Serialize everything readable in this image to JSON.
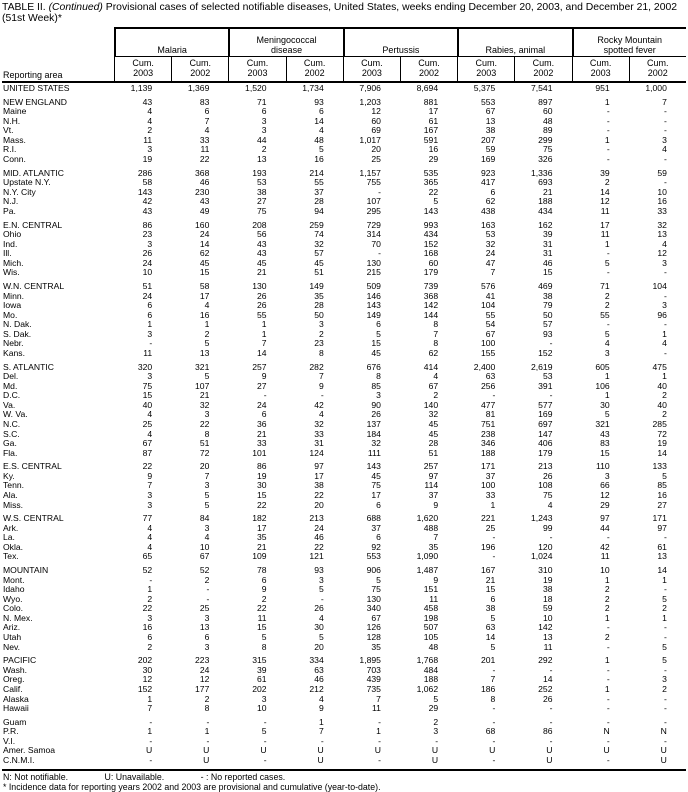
{
  "title": {
    "prefix": "TABLE II. ",
    "continued": "(Continued)",
    "rest": " Provisional cases of selected notifiable diseases, United States, weeks ending December 20, 2003, and December 21, 2002 (51st Week)*"
  },
  "header": {
    "reporting_area": "Reporting area",
    "groups": [
      {
        "lines": [
          "Malaria"
        ]
      },
      {
        "lines": [
          "Meningococcal",
          "disease"
        ]
      },
      {
        "lines": [
          "Pertussis"
        ]
      },
      {
        "lines": [
          "Rabies, animal"
        ]
      },
      {
        "lines": [
          "Rocky Mountain",
          "spotted fever"
        ]
      }
    ],
    "subcolumns": [
      {
        "line1": "Cum.",
        "line2": "2003"
      },
      {
        "line1": "Cum.",
        "line2": "2002"
      }
    ]
  },
  "rows": [
    {
      "area": "UNITED STATES",
      "gap": false,
      "values": [
        "1,139",
        "1,369",
        "1,520",
        "1,734",
        "7,906",
        "8,694",
        "5,375",
        "7,541",
        "951",
        "1,000"
      ]
    },
    {
      "area": "NEW ENGLAND",
      "gap": true,
      "values": [
        "43",
        "83",
        "71",
        "93",
        "1,203",
        "881",
        "553",
        "897",
        "1",
        "7"
      ]
    },
    {
      "area": "Maine",
      "gap": false,
      "values": [
        "4",
        "6",
        "6",
        "6",
        "12",
        "17",
        "67",
        "60",
        "-",
        "-"
      ]
    },
    {
      "area": "N.H.",
      "gap": false,
      "values": [
        "4",
        "7",
        "3",
        "14",
        "60",
        "61",
        "13",
        "48",
        "-",
        "-"
      ]
    },
    {
      "area": "Vt.",
      "gap": false,
      "values": [
        "2",
        "4",
        "3",
        "4",
        "69",
        "167",
        "38",
        "89",
        "-",
        "-"
      ]
    },
    {
      "area": "Mass.",
      "gap": false,
      "values": [
        "11",
        "33",
        "44",
        "48",
        "1,017",
        "591",
        "207",
        "299",
        "1",
        "3"
      ]
    },
    {
      "area": "R.I.",
      "gap": false,
      "values": [
        "3",
        "11",
        "2",
        "5",
        "20",
        "16",
        "59",
        "75",
        "-",
        "4"
      ]
    },
    {
      "area": "Conn.",
      "gap": false,
      "values": [
        "19",
        "22",
        "13",
        "16",
        "25",
        "29",
        "169",
        "326",
        "-",
        "-"
      ]
    },
    {
      "area": "MID. ATLANTIC",
      "gap": true,
      "values": [
        "286",
        "368",
        "193",
        "214",
        "1,157",
        "535",
        "923",
        "1,336",
        "39",
        "59"
      ]
    },
    {
      "area": "Upstate N.Y.",
      "gap": false,
      "values": [
        "58",
        "46",
        "53",
        "55",
        "755",
        "365",
        "417",
        "693",
        "2",
        "-"
      ]
    },
    {
      "area": "N.Y. City",
      "gap": false,
      "values": [
        "143",
        "230",
        "38",
        "37",
        "-",
        "22",
        "6",
        "21",
        "14",
        "10"
      ]
    },
    {
      "area": "N.J.",
      "gap": false,
      "values": [
        "42",
        "43",
        "27",
        "28",
        "107",
        "5",
        "62",
        "188",
        "12",
        "16"
      ]
    },
    {
      "area": "Pa.",
      "gap": false,
      "values": [
        "43",
        "49",
        "75",
        "94",
        "295",
        "143",
        "438",
        "434",
        "11",
        "33"
      ]
    },
    {
      "area": "E.N. CENTRAL",
      "gap": true,
      "values": [
        "86",
        "160",
        "208",
        "259",
        "729",
        "993",
        "163",
        "162",
        "17",
        "32"
      ]
    },
    {
      "area": "Ohio",
      "gap": false,
      "values": [
        "23",
        "24",
        "56",
        "74",
        "314",
        "434",
        "53",
        "39",
        "11",
        "13"
      ]
    },
    {
      "area": "Ind.",
      "gap": false,
      "values": [
        "3",
        "14",
        "43",
        "32",
        "70",
        "152",
        "32",
        "31",
        "1",
        "4"
      ]
    },
    {
      "area": "Ill.",
      "gap": false,
      "values": [
        "26",
        "62",
        "43",
        "57",
        "-",
        "168",
        "24",
        "31",
        "-",
        "12"
      ]
    },
    {
      "area": "Mich.",
      "gap": false,
      "values": [
        "24",
        "45",
        "45",
        "45",
        "130",
        "60",
        "47",
        "46",
        "5",
        "3"
      ]
    },
    {
      "area": "Wis.",
      "gap": false,
      "values": [
        "10",
        "15",
        "21",
        "51",
        "215",
        "179",
        "7",
        "15",
        "-",
        "-"
      ]
    },
    {
      "area": "W.N. CENTRAL",
      "gap": true,
      "values": [
        "51",
        "58",
        "130",
        "149",
        "509",
        "739",
        "576",
        "469",
        "71",
        "104"
      ]
    },
    {
      "area": "Minn.",
      "gap": false,
      "values": [
        "24",
        "17",
        "26",
        "35",
        "146",
        "368",
        "41",
        "38",
        "2",
        "-"
      ]
    },
    {
      "area": "Iowa",
      "gap": false,
      "values": [
        "6",
        "4",
        "26",
        "28",
        "143",
        "142",
        "104",
        "79",
        "2",
        "3"
      ]
    },
    {
      "area": "Mo.",
      "gap": false,
      "values": [
        "6",
        "16",
        "55",
        "50",
        "149",
        "144",
        "55",
        "50",
        "55",
        "96"
      ]
    },
    {
      "area": "N. Dak.",
      "gap": false,
      "values": [
        "1",
        "1",
        "1",
        "3",
        "6",
        "8",
        "54",
        "57",
        "-",
        "-"
      ]
    },
    {
      "area": "S. Dak.",
      "gap": false,
      "values": [
        "3",
        "2",
        "1",
        "2",
        "5",
        "7",
        "67",
        "93",
        "5",
        "1"
      ]
    },
    {
      "area": "Nebr.",
      "gap": false,
      "values": [
        "-",
        "5",
        "7",
        "23",
        "15",
        "8",
        "100",
        "-",
        "4",
        "4"
      ]
    },
    {
      "area": "Kans.",
      "gap": false,
      "values": [
        "11",
        "13",
        "14",
        "8",
        "45",
        "62",
        "155",
        "152",
        "3",
        "-"
      ]
    },
    {
      "area": "S. ATLANTIC",
      "gap": true,
      "values": [
        "320",
        "321",
        "257",
        "282",
        "676",
        "414",
        "2,400",
        "2,619",
        "605",
        "475"
      ]
    },
    {
      "area": "Del.",
      "gap": false,
      "values": [
        "3",
        "5",
        "9",
        "7",
        "8",
        "4",
        "63",
        "53",
        "1",
        "1"
      ]
    },
    {
      "area": "Md.",
      "gap": false,
      "values": [
        "75",
        "107",
        "27",
        "9",
        "85",
        "67",
        "256",
        "391",
        "106",
        "40"
      ]
    },
    {
      "area": "D.C.",
      "gap": false,
      "values": [
        "15",
        "21",
        "-",
        "-",
        "3",
        "2",
        "-",
        "-",
        "1",
        "2"
      ]
    },
    {
      "area": "Va.",
      "gap": false,
      "values": [
        "40",
        "32",
        "24",
        "42",
        "90",
        "140",
        "477",
        "577",
        "30",
        "40"
      ]
    },
    {
      "area": "W. Va.",
      "gap": false,
      "values": [
        "4",
        "3",
        "6",
        "4",
        "26",
        "32",
        "81",
        "169",
        "5",
        "2"
      ]
    },
    {
      "area": "N.C.",
      "gap": false,
      "values": [
        "25",
        "22",
        "36",
        "32",
        "137",
        "45",
        "751",
        "697",
        "321",
        "285"
      ]
    },
    {
      "area": "S.C.",
      "gap": false,
      "values": [
        "4",
        "8",
        "21",
        "33",
        "184",
        "45",
        "238",
        "147",
        "43",
        "72"
      ]
    },
    {
      "area": "Ga.",
      "gap": false,
      "values": [
        "67",
        "51",
        "33",
        "31",
        "32",
        "28",
        "346",
        "406",
        "83",
        "19"
      ]
    },
    {
      "area": "Fla.",
      "gap": false,
      "values": [
        "87",
        "72",
        "101",
        "124",
        "111",
        "51",
        "188",
        "179",
        "15",
        "14"
      ]
    },
    {
      "area": "E.S. CENTRAL",
      "gap": true,
      "values": [
        "22",
        "20",
        "86",
        "97",
        "143",
        "257",
        "171",
        "213",
        "110",
        "133"
      ]
    },
    {
      "area": "Ky.",
      "gap": false,
      "values": [
        "9",
        "7",
        "19",
        "17",
        "45",
        "97",
        "37",
        "26",
        "3",
        "5"
      ]
    },
    {
      "area": "Tenn.",
      "gap": false,
      "values": [
        "7",
        "3",
        "30",
        "38",
        "75",
        "114",
        "100",
        "108",
        "66",
        "85"
      ]
    },
    {
      "area": "Ala.",
      "gap": false,
      "values": [
        "3",
        "5",
        "15",
        "22",
        "17",
        "37",
        "33",
        "75",
        "12",
        "16"
      ]
    },
    {
      "area": "Miss.",
      "gap": false,
      "values": [
        "3",
        "5",
        "22",
        "20",
        "6",
        "9",
        "1",
        "4",
        "29",
        "27"
      ]
    },
    {
      "area": "W.S. CENTRAL",
      "gap": true,
      "values": [
        "77",
        "84",
        "182",
        "213",
        "688",
        "1,620",
        "221",
        "1,243",
        "97",
        "171"
      ]
    },
    {
      "area": "Ark.",
      "gap": false,
      "values": [
        "4",
        "3",
        "17",
        "24",
        "37",
        "488",
        "25",
        "99",
        "44",
        "97"
      ]
    },
    {
      "area": "La.",
      "gap": false,
      "values": [
        "4",
        "4",
        "35",
        "46",
        "6",
        "7",
        "-",
        "-",
        "-",
        "-"
      ]
    },
    {
      "area": "Okla.",
      "gap": false,
      "values": [
        "4",
        "10",
        "21",
        "22",
        "92",
        "35",
        "196",
        "120",
        "42",
        "61"
      ]
    },
    {
      "area": "Tex.",
      "gap": false,
      "values": [
        "65",
        "67",
        "109",
        "121",
        "553",
        "1,090",
        "-",
        "1,024",
        "11",
        "13"
      ]
    },
    {
      "area": "MOUNTAIN",
      "gap": true,
      "values": [
        "52",
        "52",
        "78",
        "93",
        "906",
        "1,487",
        "167",
        "310",
        "10",
        "14"
      ]
    },
    {
      "area": "Mont.",
      "gap": false,
      "values": [
        "-",
        "2",
        "6",
        "3",
        "5",
        "9",
        "21",
        "19",
        "1",
        "1"
      ]
    },
    {
      "area": "Idaho",
      "gap": false,
      "values": [
        "1",
        "-",
        "9",
        "5",
        "75",
        "151",
        "15",
        "38",
        "2",
        "-"
      ]
    },
    {
      "area": "Wyo.",
      "gap": false,
      "values": [
        "2",
        "-",
        "2",
        "-",
        "130",
        "11",
        "6",
        "18",
        "2",
        "5"
      ]
    },
    {
      "area": "Colo.",
      "gap": false,
      "values": [
        "22",
        "25",
        "22",
        "26",
        "340",
        "458",
        "38",
        "59",
        "2",
        "2"
      ]
    },
    {
      "area": "N. Mex.",
      "gap": false,
      "values": [
        "3",
        "3",
        "11",
        "4",
        "67",
        "198",
        "5",
        "10",
        "1",
        "1"
      ]
    },
    {
      "area": "Ariz.",
      "gap": false,
      "values": [
        "16",
        "13",
        "15",
        "30",
        "126",
        "507",
        "63",
        "142",
        "-",
        "-"
      ]
    },
    {
      "area": "Utah",
      "gap": false,
      "values": [
        "6",
        "6",
        "5",
        "5",
        "128",
        "105",
        "14",
        "13",
        "2",
        "-"
      ]
    },
    {
      "area": "Nev.",
      "gap": false,
      "values": [
        "2",
        "3",
        "8",
        "20",
        "35",
        "48",
        "5",
        "11",
        "-",
        "5"
      ]
    },
    {
      "area": "PACIFIC",
      "gap": true,
      "values": [
        "202",
        "223",
        "315",
        "334",
        "1,895",
        "1,768",
        "201",
        "292",
        "1",
        "5"
      ]
    },
    {
      "area": "Wash.",
      "gap": false,
      "values": [
        "30",
        "24",
        "39",
        "63",
        "703",
        "484",
        "-",
        "-",
        "-",
        "-"
      ]
    },
    {
      "area": "Oreg.",
      "gap": false,
      "values": [
        "12",
        "12",
        "61",
        "46",
        "439",
        "188",
        "7",
        "14",
        "-",
        "3"
      ]
    },
    {
      "area": "Calif.",
      "gap": false,
      "values": [
        "152",
        "177",
        "202",
        "212",
        "735",
        "1,062",
        "186",
        "252",
        "1",
        "2"
      ]
    },
    {
      "area": "Alaska",
      "gap": false,
      "values": [
        "1",
        "2",
        "3",
        "4",
        "7",
        "5",
        "8",
        "26",
        "-",
        "-"
      ]
    },
    {
      "area": "Hawaii",
      "gap": false,
      "values": [
        "7",
        "8",
        "10",
        "9",
        "11",
        "29",
        "-",
        "-",
        "-",
        "-"
      ]
    },
    {
      "area": "Guam",
      "gap": true,
      "values": [
        "-",
        "-",
        "-",
        "1",
        "-",
        "2",
        "-",
        "-",
        "-",
        "-"
      ]
    },
    {
      "area": "P.R.",
      "gap": false,
      "values": [
        "1",
        "1",
        "5",
        "7",
        "1",
        "3",
        "68",
        "86",
        "N",
        "N"
      ]
    },
    {
      "area": "V.I.",
      "gap": false,
      "values": [
        "-",
        "-",
        "-",
        "-",
        "-",
        "-",
        "-",
        "-",
        "-",
        "-"
      ]
    },
    {
      "area": "Amer. Samoa",
      "gap": false,
      "values": [
        "U",
        "U",
        "U",
        "U",
        "U",
        "U",
        "U",
        "U",
        "U",
        "U"
      ]
    },
    {
      "area": "C.N.M.I.",
      "gap": false,
      "values": [
        "-",
        "U",
        "-",
        "U",
        "-",
        "U",
        "-",
        "U",
        "-",
        "U"
      ]
    }
  ],
  "footnotes": {
    "legend": [
      "N: Not notifiable.",
      "U: Unavailable.",
      "- : No reported cases."
    ],
    "note": "* Incidence data for reporting years 2002 and 2003 are provisional and cumulative (year-to-date)."
  }
}
